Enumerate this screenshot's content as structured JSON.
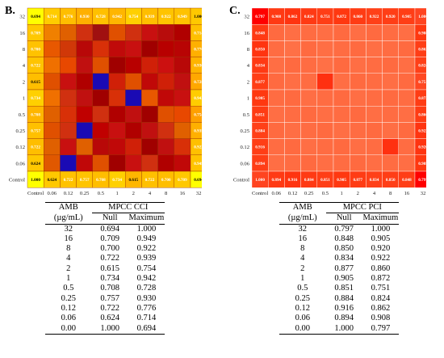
{
  "panels": [
    {
      "letter": "B.",
      "chart_data": {
        "type": "heatmap",
        "x_tick_labels": [
          "Control",
          "0.06",
          "0.12",
          "0.25",
          "0.5",
          "1",
          "2",
          "4",
          "8",
          "16",
          "32"
        ],
        "y_tick_labels": [
          "Control",
          "0.06",
          "0.12",
          "0.25",
          "0.5",
          "1",
          "2",
          "4",
          "8",
          "16",
          "32"
        ],
        "y_order": "bottom-to-top",
        "left_column_values": [
          "1.000",
          "0.624",
          "0.722",
          "0.757",
          "0.708",
          "0.734",
          "0.615",
          "0.722",
          "0.700",
          "0.709",
          "0.694"
        ],
        "bottom_row_values": [
          "1.000",
          "0.624",
          "0.722",
          "0.757",
          "0.708",
          "0.734",
          "0.615",
          "0.722",
          "0.700",
          "0.709",
          "0.694"
        ],
        "top_row_values": [
          "0.694",
          "0.714",
          "0.776",
          "0.930",
          "0.728",
          "0.942",
          "0.754",
          "0.939",
          "0.922",
          "0.949",
          "1.000"
        ],
        "right_column_values": [
          "0.694",
          "0.714",
          "0.776",
          "0.930",
          "0.728",
          "0.942",
          "0.754",
          "0.939",
          "0.922",
          "0.949",
          "1.000"
        ],
        "cell_colors": [
          [
            "#ffff00",
            "#ffcc00",
            "#ffbe00",
            "#ffb000",
            "#ffc000",
            "#ffb600",
            "#ffd000",
            "#ffbe00",
            "#ffc400",
            "#ffc200",
            "#ffc800"
          ],
          [
            "#ffc800",
            "#f08000",
            "#e06000",
            "#d03010",
            "#a01010",
            "#e05000",
            "#d03010",
            "#c81010",
            "#b80c0c",
            "#b00000",
            "#ffc000"
          ],
          [
            "#ffc200",
            "#e85800",
            "#d03808",
            "#b80808",
            "#d83008",
            "#c00a0a",
            "#c81010",
            "#a00000",
            "#b80000",
            "#b80404",
            "#ffb000"
          ],
          [
            "#ffc400",
            "#f07000",
            "#e84800",
            "#c01010",
            "#e05000",
            "#a00000",
            "#b80000",
            "#d02008",
            "#cc1010",
            "#b80808",
            "#ffb400"
          ],
          [
            "#ffbe00",
            "#e05000",
            "#c81010",
            "#b00000",
            "#1a0ab4",
            "#d02008",
            "#e05000",
            "#c00808",
            "#d02008",
            "#c01010",
            "#ffa800"
          ],
          [
            "#ffd000",
            "#f07000",
            "#d03010",
            "#c01010",
            "#a00000",
            "#d83008",
            "#1a0ab4",
            "#e85800",
            "#c00808",
            "#c81010",
            "#ffcc00"
          ],
          [
            "#ffb600",
            "#e06000",
            "#d83008",
            "#c00000",
            "#d03010",
            "#b00000",
            "#c01010",
            "#a00000",
            "#e05000",
            "#e84800",
            "#ffa000"
          ],
          [
            "#ffc000",
            "#e05000",
            "#d03010",
            "#1a0ab4",
            "#c00000",
            "#c81010",
            "#b00000",
            "#c01010",
            "#d03010",
            "#e06000",
            "#ffb000"
          ],
          [
            "#ffbe00",
            "#e06000",
            "#c81010",
            "#e06000",
            "#b80808",
            "#c00808",
            "#d02008",
            "#a00000",
            "#c01010",
            "#d83008",
            "#ffc000"
          ],
          [
            "#ffc800",
            "#e05800",
            "#1a0ab4",
            "#c00808",
            "#e05000",
            "#a00000",
            "#c81010",
            "#d03010",
            "#b00000",
            "#c00808",
            "#ffc400"
          ],
          [
            "#ffff00",
            "#ffc800",
            "#ffc200",
            "#ffc400",
            "#ffbe00",
            "#ffd000",
            "#ffb600",
            "#ffc000",
            "#ffbe00",
            "#ffc800",
            "#ffff00"
          ]
        ]
      },
      "table": {
        "col0_header": [
          "AMB",
          "(µg/mL)"
        ],
        "group_header": "MPCC CCI",
        "sub_headers": [
          "Null",
          "Maximum"
        ],
        "rows": [
          [
            "32",
            "0.694",
            "1.000"
          ],
          [
            "16",
            "0.709",
            "0.949"
          ],
          [
            "8",
            "0.700",
            "0.922"
          ],
          [
            "4",
            "0.722",
            "0.939"
          ],
          [
            "2",
            "0.615",
            "0.754"
          ],
          [
            "1",
            "0.734",
            "0.942"
          ],
          [
            "0.5",
            "0.708",
            "0.728"
          ],
          [
            "0.25",
            "0.757",
            "0.930"
          ],
          [
            "0.12",
            "0.722",
            "0.776"
          ],
          [
            "0.06",
            "0.624",
            "0.714"
          ],
          [
            "0.00",
            "1.000",
            "0.694"
          ]
        ]
      }
    },
    {
      "letter": "C.",
      "chart_data": {
        "type": "heatmap",
        "x_tick_labels": [
          "Control",
          "0.06",
          "0.12",
          "0.25",
          "0.5",
          "1",
          "2",
          "4",
          "8",
          "16",
          "32"
        ],
        "y_tick_labels": [
          "Control",
          "0.06",
          "0.12",
          "0.25",
          "0.5",
          "1",
          "2",
          "4",
          "8",
          "16",
          "32"
        ],
        "y_order": "bottom-to-top",
        "left_column_values": [
          "1.000",
          "0.894",
          "0.916",
          "0.884",
          "0.851",
          "0.905",
          "0.877",
          "0.834",
          "0.850",
          "0.848",
          "0.797"
        ],
        "bottom_row_values": [
          "1.000",
          "0.894",
          "0.916",
          "0.884",
          "0.851",
          "0.905",
          "0.877",
          "0.834",
          "0.850",
          "0.848",
          "0.797"
        ],
        "top_row_values": [
          "0.797",
          "0.908",
          "0.862",
          "0.824",
          "0.751",
          "0.872",
          "0.860",
          "0.922",
          "0.920",
          "0.905",
          "1.000"
        ],
        "right_column_values": [
          "0.797",
          "0.908",
          "0.862",
          "0.824",
          "0.751",
          "0.872",
          "0.860",
          "0.922",
          "0.920",
          "0.905",
          "1.000"
        ],
        "cell_colors": [
          [
            "#ff0000",
            "#ff3a14",
            "#ff3410",
            "#ff3a14",
            "#ff3e16",
            "#ff3810",
            "#ff3c14",
            "#ff4018",
            "#ff3e16",
            "#ff3e16",
            "#ff4420"
          ],
          [
            "#ff3a14",
            "#ff6a40",
            "#ff6e44",
            "#ff6c42",
            "#ff6e44",
            "#ff6a40",
            "#ff6e44",
            "#ff6a40",
            "#ff6c42",
            "#ff6e44",
            "#ff3810"
          ],
          [
            "#ff3410",
            "#ff6c42",
            "#ff7046",
            "#ff6a40",
            "#ff6e44",
            "#ff6c42",
            "#ff6a40",
            "#ff6e44",
            "#ff6c42",
            "#ff6a40",
            "#ff3e16"
          ],
          [
            "#ff3a14",
            "#ff6e44",
            "#ff6a40",
            "#ff6c42",
            "#ff7046",
            "#ff6a40",
            "#ff6e44",
            "#ff6c42",
            "#ff6a40",
            "#ff6e44",
            "#ff4018"
          ],
          [
            "#ff3e16",
            "#ff6a40",
            "#ff6e44",
            "#ff6c42",
            "#ff3010",
            "#ff6e44",
            "#ff6a40",
            "#ff6c42",
            "#ff6e44",
            "#ff6a40",
            "#ff4822"
          ],
          [
            "#ff3810",
            "#ff6c42",
            "#ff6a40",
            "#ff6e44",
            "#ff6c42",
            "#ff6a40",
            "#ff6e44",
            "#ff6c42",
            "#ff6a40",
            "#ff6c42",
            "#ff3c14"
          ],
          [
            "#ff3c14",
            "#ff6e44",
            "#ff6c42",
            "#ff6a40",
            "#ff6e44",
            "#ff6c42",
            "#ff6a40",
            "#ff6e44",
            "#ff6c42",
            "#ff6e44",
            "#ff3c14"
          ],
          [
            "#ff4018",
            "#ff6a40",
            "#ff6e44",
            "#ff6c42",
            "#ff6a40",
            "#ff6e44",
            "#ff6c42",
            "#ff6a40",
            "#ff6e44",
            "#ff6a40",
            "#ff3410"
          ],
          [
            "#ff3e16",
            "#ff6c42",
            "#ff6a40",
            "#ff6e44",
            "#ff6c42",
            "#ff6a40",
            "#ff6e44",
            "#ff6c42",
            "#ff3010",
            "#ff6c42",
            "#ff3410"
          ],
          [
            "#ff3e16",
            "#ff6e44",
            "#ff6c42",
            "#ff6a40",
            "#ff6e44",
            "#ff6c42",
            "#ff6a40",
            "#ff6e44",
            "#ff6c42",
            "#ff6e44",
            "#ff3810"
          ],
          [
            "#ff4420",
            "#ff3a14",
            "#ff3410",
            "#ff3a14",
            "#ff3e16",
            "#ff3810",
            "#ff3c14",
            "#ff4018",
            "#ff3e16",
            "#ff3e16",
            "#ff0000"
          ]
        ]
      },
      "table": {
        "col0_header": [
          "AMB",
          "(µg/mL)"
        ],
        "group_header": "MPCC PCI",
        "sub_headers": [
          "Null",
          "Maximum"
        ],
        "rows": [
          [
            "32",
            "0.797",
            "1.000"
          ],
          [
            "16",
            "0.848",
            "0.905"
          ],
          [
            "8",
            "0.850",
            "0.920"
          ],
          [
            "4",
            "0.834",
            "0.922"
          ],
          [
            "2",
            "0.877",
            "0.860"
          ],
          [
            "1",
            "0.905",
            "0.872"
          ],
          [
            "0.5",
            "0.851",
            "0.751"
          ],
          [
            "0.25",
            "0.884",
            "0.824"
          ],
          [
            "0.12",
            "0.916",
            "0.862"
          ],
          [
            "0.06",
            "0.894",
            "0.908"
          ],
          [
            "0.00",
            "1.000",
            "0.797"
          ]
        ]
      }
    }
  ]
}
